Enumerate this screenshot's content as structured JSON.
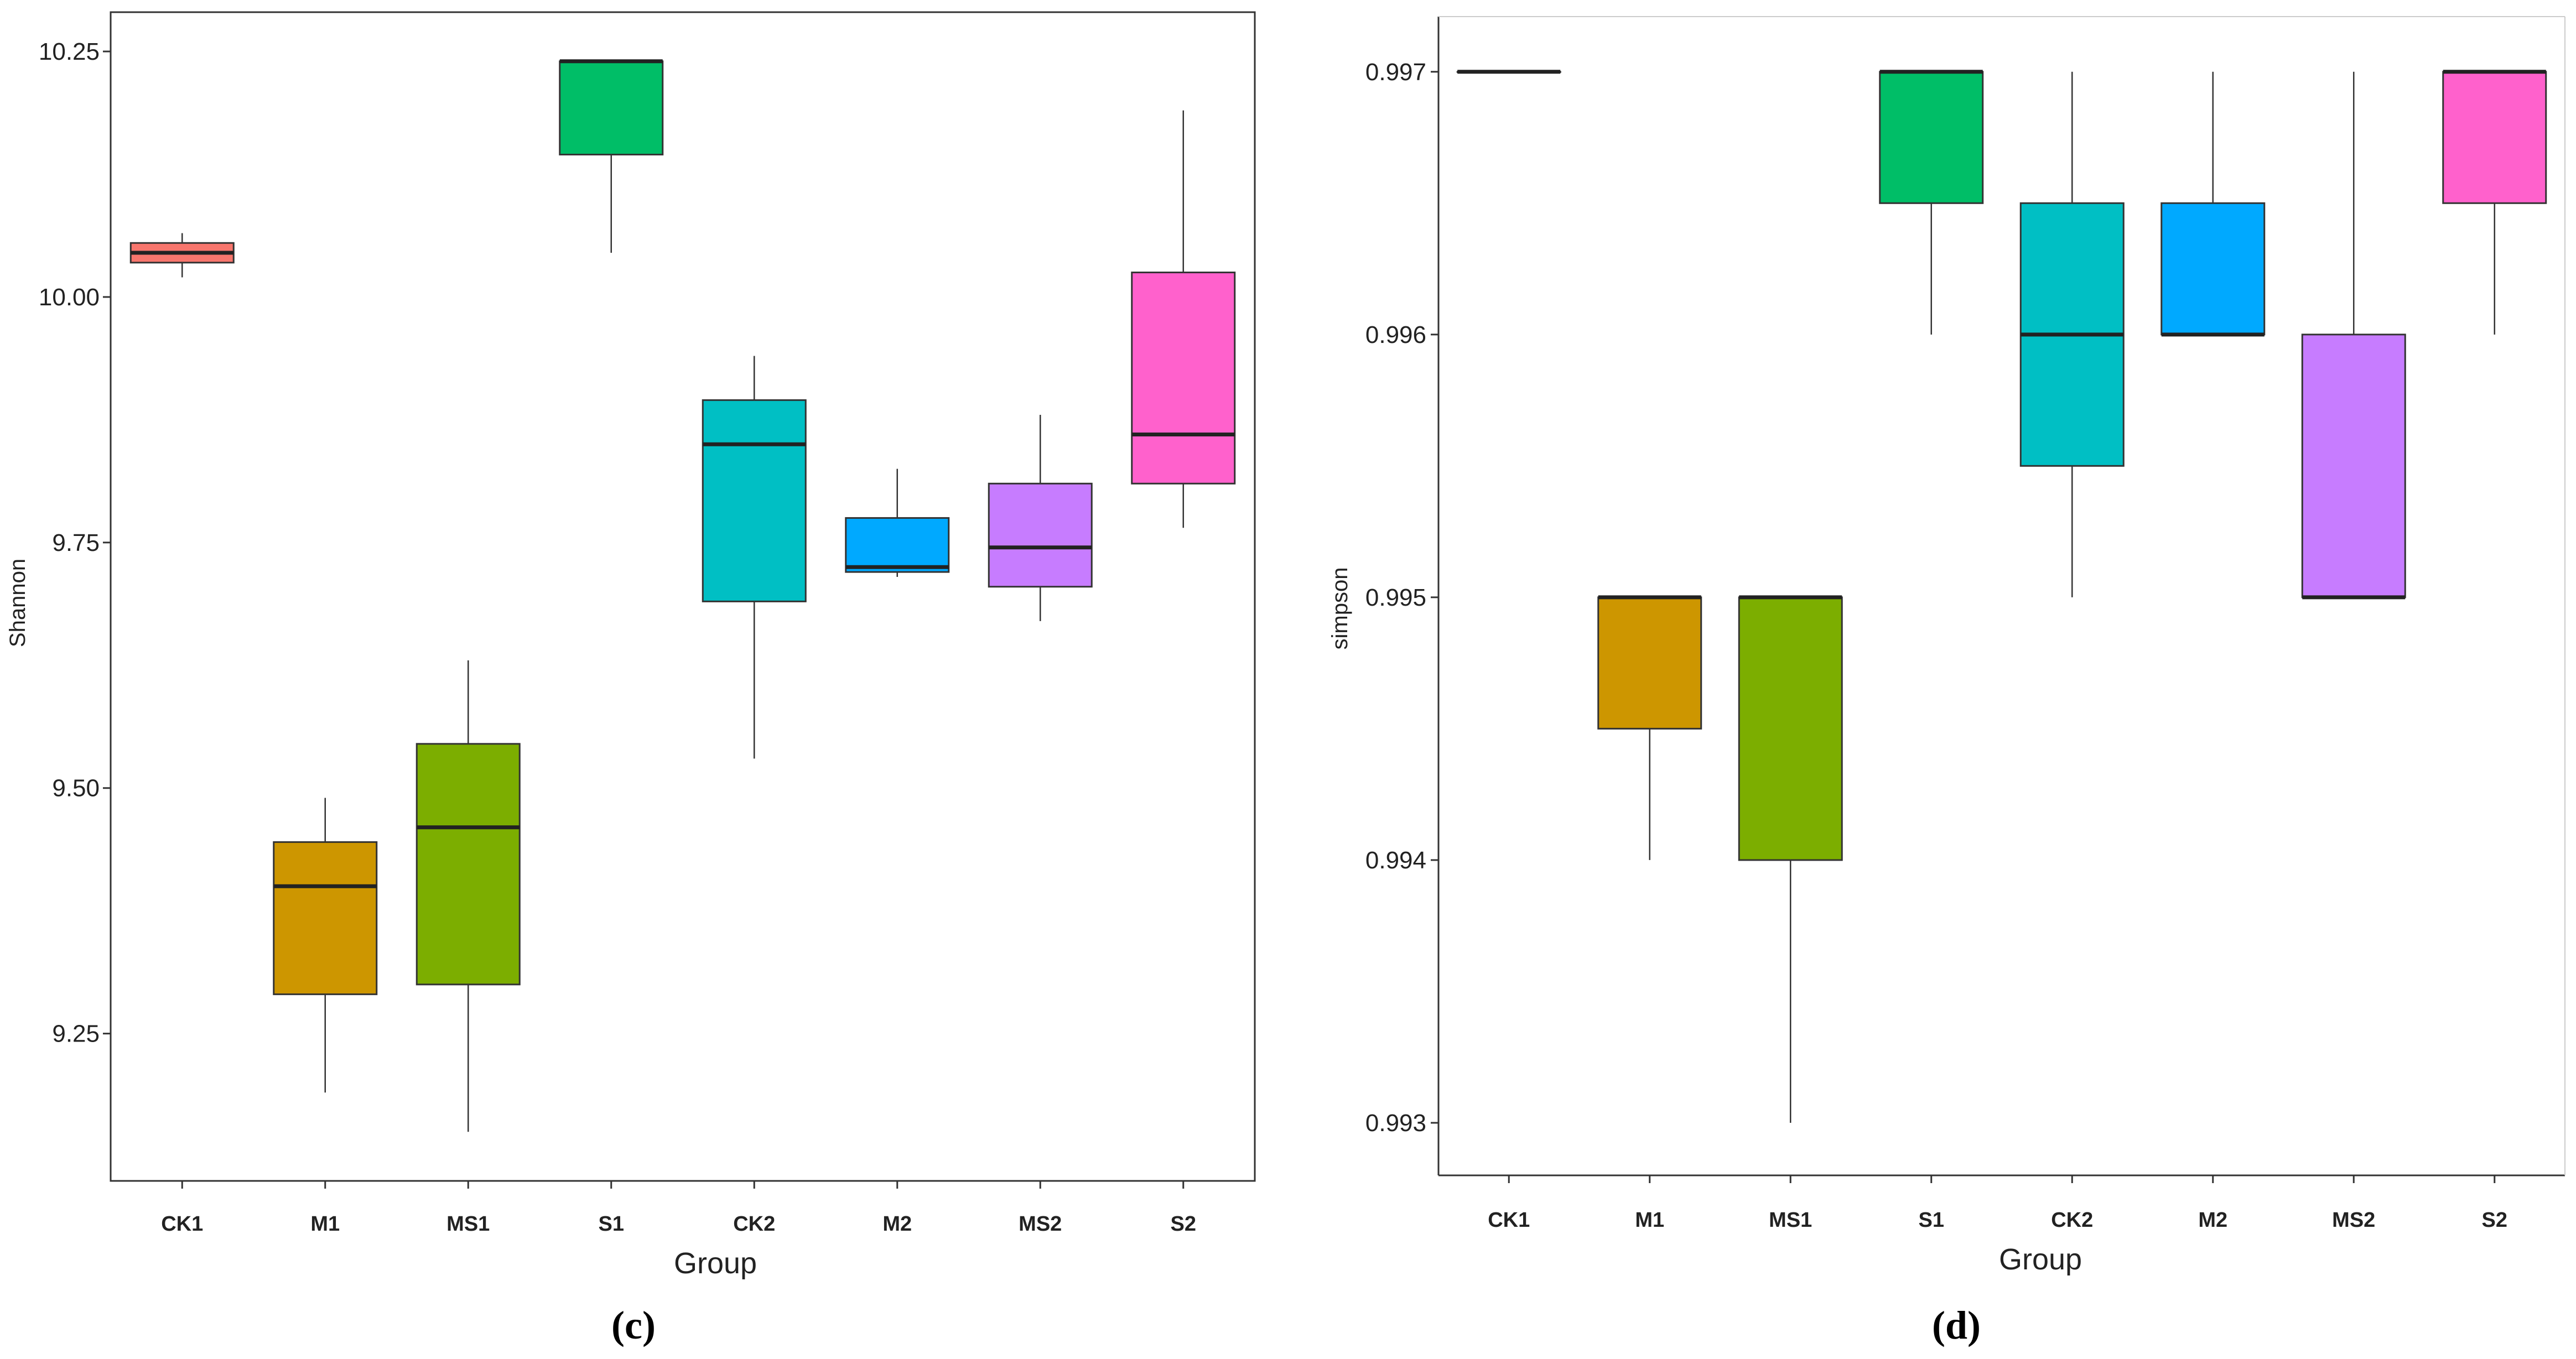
{
  "chart_data": [
    {
      "type": "box",
      "panel_label": "(c)",
      "title": "",
      "xlabel": "Group",
      "ylabel": "Shannon",
      "ylim": [
        9.1,
        10.29
      ],
      "yticks": [
        9.25,
        9.5,
        9.75,
        10.0,
        10.25
      ],
      "ytick_labels": [
        "9.25",
        "9.50",
        "9.75",
        "10.00",
        "10.25"
      ],
      "categories": [
        "CK1",
        "M1",
        "MS1",
        "S1",
        "CK2",
        "M2",
        "MS2",
        "S2"
      ],
      "series": [
        {
          "name": "CK1",
          "min": 10.02,
          "q1": 10.035,
          "median": 10.045,
          "q3": 10.055,
          "max": 10.065,
          "color": "#F8766D"
        },
        {
          "name": "M1",
          "min": 9.19,
          "q1": 9.29,
          "median": 9.4,
          "q3": 9.445,
          "max": 9.49,
          "color": "#CD9600"
        },
        {
          "name": "MS1",
          "min": 9.15,
          "q1": 9.3,
          "median": 9.46,
          "q3": 9.545,
          "max": 9.63,
          "color": "#7CAE00"
        },
        {
          "name": "S1",
          "min": 10.045,
          "q1": 10.145,
          "median": 10.24,
          "q3": 10.24,
          "max": 10.24,
          "color": "#00BE67"
        },
        {
          "name": "CK2",
          "min": 9.53,
          "q1": 9.69,
          "median": 9.85,
          "q3": 9.895,
          "max": 9.94,
          "color": "#00BFC4"
        },
        {
          "name": "M2",
          "min": 9.715,
          "q1": 9.72,
          "median": 9.725,
          "q3": 9.775,
          "max": 9.825,
          "color": "#00A9FF"
        },
        {
          "name": "MS2",
          "min": 9.67,
          "q1": 9.705,
          "median": 9.745,
          "q3": 9.81,
          "max": 9.88,
          "color": "#C77CFF"
        },
        {
          "name": "S2",
          "min": 9.765,
          "q1": 9.81,
          "median": 9.86,
          "q3": 10.025,
          "max": 10.19,
          "color": "#FF61CC"
        }
      ]
    },
    {
      "type": "box",
      "panel_label": "(d)",
      "title": "",
      "xlabel": "Group",
      "ylabel": "simpson",
      "ylim": [
        0.9928,
        0.99721
      ],
      "yticks": [
        0.993,
        0.994,
        0.995,
        0.996,
        0.997
      ],
      "ytick_labels": [
        "0.993",
        "0.994",
        "0.995",
        "0.996",
        "0.997"
      ],
      "categories": [
        "CK1",
        "M1",
        "MS1",
        "S1",
        "CK2",
        "M2",
        "MS2",
        "S2"
      ],
      "series": [
        {
          "name": "CK1",
          "min": 0.997,
          "q1": 0.997,
          "median": 0.997,
          "q3": 0.997,
          "max": 0.997,
          "color": "#F8766D"
        },
        {
          "name": "M1",
          "min": 0.994,
          "q1": 0.9945,
          "median": 0.995,
          "q3": 0.995,
          "max": 0.995,
          "color": "#CD9600"
        },
        {
          "name": "MS1",
          "min": 0.993,
          "q1": 0.994,
          "median": 0.995,
          "q3": 0.995,
          "max": 0.995,
          "color": "#7CAE00"
        },
        {
          "name": "S1",
          "min": 0.996,
          "q1": 0.9965,
          "median": 0.997,
          "q3": 0.997,
          "max": 0.997,
          "color": "#00BE67"
        },
        {
          "name": "CK2",
          "min": 0.995,
          "q1": 0.9955,
          "median": 0.996,
          "q3": 0.9965,
          "max": 0.997,
          "color": "#00BFC4"
        },
        {
          "name": "M2",
          "min": 0.996,
          "q1": 0.996,
          "median": 0.996,
          "q3": 0.9965,
          "max": 0.997,
          "color": "#00A9FF"
        },
        {
          "name": "MS2",
          "min": 0.995,
          "q1": 0.995,
          "median": 0.995,
          "q3": 0.996,
          "max": 0.997,
          "color": "#C77CFF"
        },
        {
          "name": "S2",
          "min": 0.996,
          "q1": 0.9965,
          "median": 0.997,
          "q3": 0.997,
          "max": 0.997,
          "color": "#FF61CC"
        }
      ]
    }
  ]
}
